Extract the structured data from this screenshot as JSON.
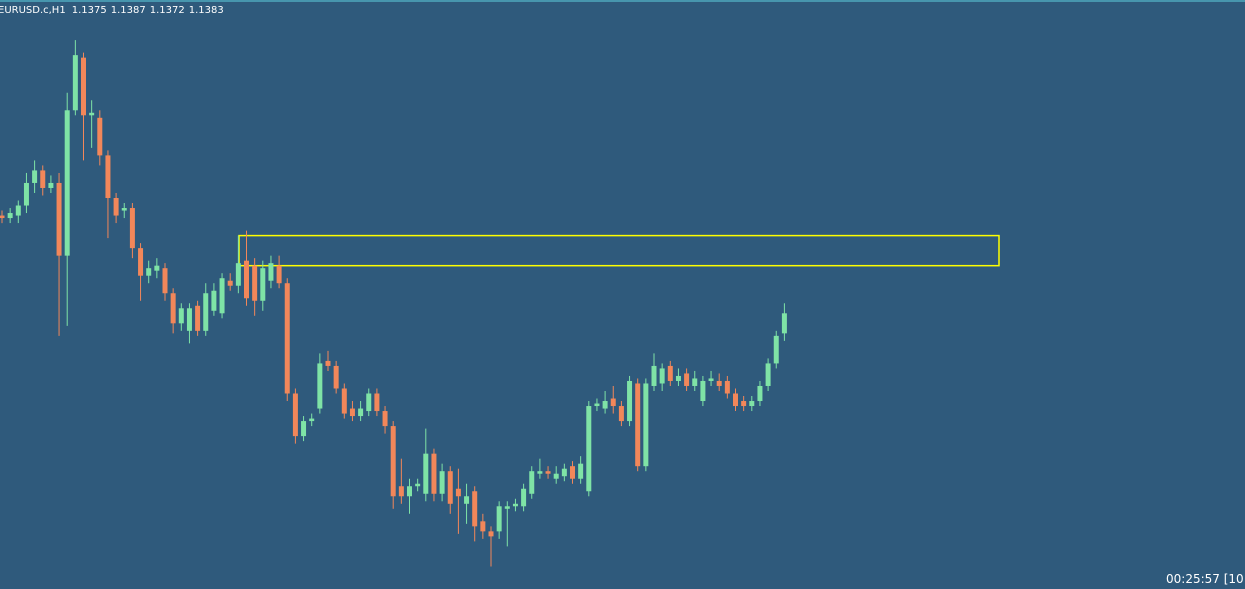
{
  "chart_data": {
    "type": "candlestick",
    "title": "EURUSD.c,H1",
    "open": [
      1.1422,
      1.1421,
      1.1422,
      1.1426,
      1.1435,
      1.144,
      1.1433,
      1.1435,
      1.1406,
      1.1464,
      1.1485,
      1.1462,
      1.1461,
      1.1446,
      1.1429,
      1.1424,
      1.1425,
      1.1409,
      1.1398,
      1.14,
      1.1401,
      1.1391,
      1.1379,
      1.1376,
      1.1386,
      1.1376,
      1.1384,
      1.1383,
      1.1396,
      1.1394,
      1.1404,
      1.1402,
      1.1388,
      1.1396,
      1.1402,
      1.1395,
      1.1351,
      1.1334,
      1.134,
      1.1345,
      1.1364,
      1.1362,
      1.1353,
      1.1345,
      1.1342,
      1.1344,
      1.1351,
      1.1344,
      1.1338,
      1.1314,
      1.131,
      1.1314,
      1.1311,
      1.1327,
      1.1311,
      1.132,
      1.1313,
      1.1307,
      1.1312,
      1.13,
      1.1296,
      1.1296,
      1.1305,
      1.1306,
      1.1306,
      1.1311,
      1.1319,
      1.132,
      1.1317,
      1.1318,
      1.1322,
      1.1317,
      1.1312,
      1.1346,
      1.1345,
      1.1349,
      1.1346,
      1.134,
      1.1355,
      1.1322,
      1.1354,
      1.1355,
      1.1362,
      1.1356,
      1.1359,
      1.1354,
      1.1348,
      1.1356,
      1.1356,
      1.1356,
      1.1351,
      1.1348,
      1.1346,
      1.1348,
      1.1354,
      1.1363,
      1.1375
    ],
    "high": [
      1.1424,
      1.1425,
      1.1428,
      1.1439,
      1.1444,
      1.1442,
      1.1438,
      1.1439,
      1.1471,
      1.1492,
      1.1487,
      1.1468,
      1.1464,
      1.1448,
      1.1431,
      1.1427,
      1.1427,
      1.1411,
      1.1404,
      1.1405,
      1.1403,
      1.1393,
      1.1387,
      1.1387,
      1.1388,
      1.1395,
      1.1395,
      1.1399,
      1.1399,
      1.1414,
      1.1416,
      1.1405,
      1.1404,
      1.1406,
      1.1406,
      1.1397,
      1.1353,
      1.1342,
      1.1343,
      1.1367,
      1.1368,
      1.1364,
      1.1355,
      1.1348,
      1.1348,
      1.1353,
      1.1353,
      1.1346,
      1.134,
      1.1325,
      1.1317,
      1.1317,
      1.1337,
      1.1329,
      1.1323,
      1.1322,
      1.1321,
      1.1315,
      1.1314,
      1.1303,
      1.1298,
      1.1308,
      1.1308,
      1.1309,
      1.1315,
      1.1322,
      1.1325,
      1.1322,
      1.1322,
      1.1323,
      1.1324,
      1.1326,
      1.1348,
      1.1349,
      1.1352,
      1.1354,
      1.1348,
      1.1358,
      1.1357,
      1.1357,
      1.1367,
      1.1363,
      1.1364,
      1.1361,
      1.1361,
      1.136,
      1.1358,
      1.136,
      1.1359,
      1.1358,
      1.1353,
      1.135,
      1.135,
      1.1356,
      1.1365,
      1.1376,
      1.1387
    ],
    "low": [
      1.1419,
      1.1419,
      1.1419,
      1.1423,
      1.1431,
      1.143,
      1.1431,
      1.1374,
      1.1378,
      1.1462,
      1.1444,
      1.1449,
      1.1442,
      1.1413,
      1.1419,
      1.1421,
      1.1405,
      1.1388,
      1.1395,
      1.1397,
      1.1388,
      1.1375,
      1.1376,
      1.1371,
      1.1374,
      1.1374,
      1.1382,
      1.1381,
      1.1392,
      1.1391,
      1.1386,
      1.1382,
      1.1384,
      1.1393,
      1.1393,
      1.1348,
      1.1331,
      1.1332,
      1.1338,
      1.1343,
      1.136,
      1.1351,
      1.1341,
      1.134,
      1.134,
      1.1342,
      1.1342,
      1.1335,
      1.1305,
      1.1307,
      1.1303,
      1.1312,
      1.1308,
      1.1308,
      1.1308,
      1.1303,
      1.1295,
      1.1299,
      1.1292,
      1.1293,
      1.1282,
      1.1293,
      1.129,
      1.1304,
      1.1304,
      1.1309,
      1.1317,
      1.1317,
      1.1315,
      1.1316,
      1.1315,
      1.1315,
      1.131,
      1.1344,
      1.1343,
      1.1343,
      1.1338,
      1.1338,
      1.132,
      1.132,
      1.1352,
      1.1352,
      1.1354,
      1.1354,
      1.1352,
      1.1352,
      1.1346,
      1.1354,
      1.1352,
      1.1349,
      1.1344,
      1.1344,
      1.1344,
      1.1346,
      1.1352,
      1.1361,
      1.1372
    ],
    "close": [
      1.1421,
      1.1423,
      1.1426,
      1.1435,
      1.144,
      1.1433,
      1.1435,
      1.1406,
      1.1464,
      1.1486,
      1.1462,
      1.1463,
      1.1446,
      1.1429,
      1.1422,
      1.1425,
      1.1409,
      1.1398,
      1.1401,
      1.1402,
      1.1391,
      1.1379,
      1.1385,
      1.1385,
      1.1376,
      1.1391,
      1.1392,
      1.1397,
      1.1394,
      1.1403,
      1.1389,
      1.1388,
      1.1401,
      1.1403,
      1.1395,
      1.1351,
      1.1334,
      1.134,
      1.1341,
      1.1363,
      1.1362,
      1.1353,
      1.1343,
      1.1342,
      1.1345,
      1.1351,
      1.1344,
      1.1338,
      1.131,
      1.131,
      1.1314,
      1.1315,
      1.1327,
      1.1311,
      1.132,
      1.1307,
      1.131,
      1.131,
      1.1298,
      1.1296,
      1.1294,
      1.1306,
      1.1306,
      1.1307,
      1.1313,
      1.132,
      1.132,
      1.1319,
      1.1319,
      1.1321,
      1.1317,
      1.1323,
      1.1346,
      1.1347,
      1.1348,
      1.1346,
      1.134,
      1.1356,
      1.1322,
      1.1355,
      1.1362,
      1.1361,
      1.1356,
      1.1358,
      1.1354,
      1.1357,
      1.1356,
      1.1357,
      1.1354,
      1.1351,
      1.1346,
      1.1346,
      1.1348,
      1.1354,
      1.1363,
      1.1374,
      1.1383
    ],
    "ylim": [
      1.1273,
      1.1508
    ],
    "up_color": "#7fe3a6",
    "down_color": "#f2875a",
    "background": "#2f5a7c",
    "zone": {
      "top": 1.1414,
      "bottom": 1.1402,
      "color": "#ffff00"
    },
    "timer": "00:25:57 [10"
  }
}
